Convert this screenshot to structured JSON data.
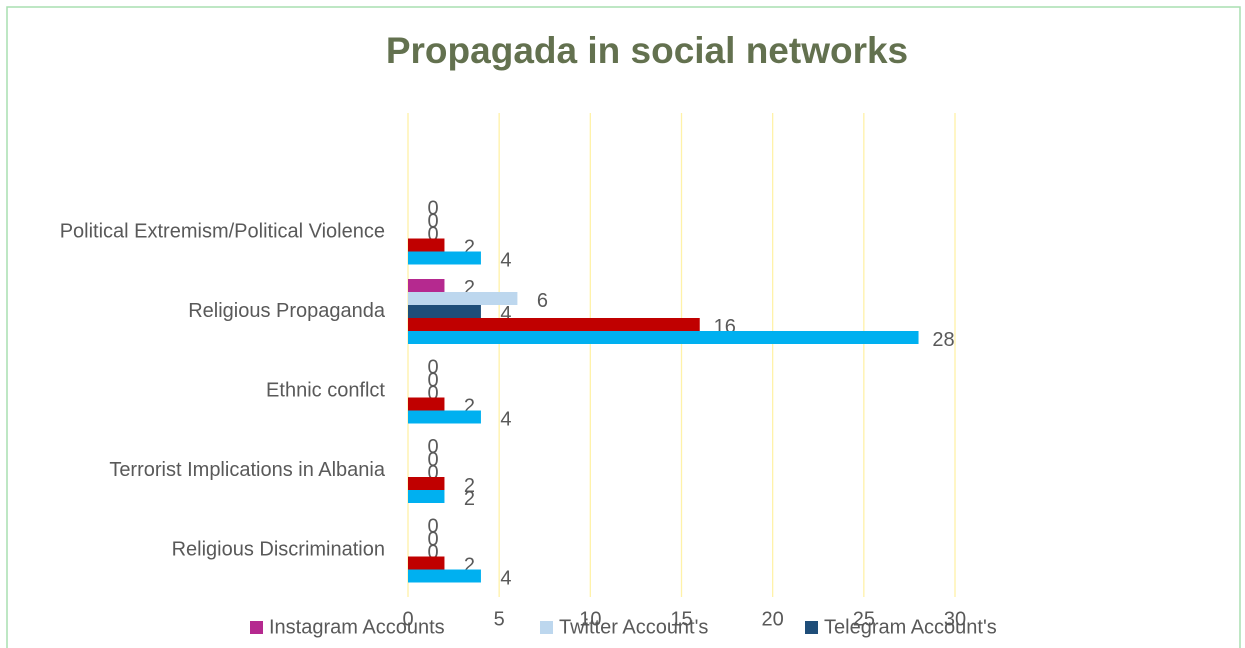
{
  "chart_data": {
    "type": "hbar",
    "title": "Propagada in social networks",
    "categories": [
      "Political Extremism/Political Violence",
      "Religious Propaganda",
      "Ethnic conflct",
      "Terrorist Implications in Albania",
      "Religious Discrimination"
    ],
    "series": [
      {
        "name": "Instagram Accounts",
        "color": "#b5298f",
        "values": [
          0,
          2,
          0,
          0,
          0
        ]
      },
      {
        "name": "Twitter Account's",
        "color": "#bdd7ee",
        "values": [
          0,
          6,
          0,
          0,
          0
        ]
      },
      {
        "name": "Telegram Account's",
        "color": "#1f4e79",
        "values": [
          0,
          4,
          0,
          0,
          0
        ]
      },
      {
        "color": "#c00000",
        "values": [
          2,
          16,
          2,
          2,
          2
        ]
      },
      {
        "color": "#00b0f0",
        "values": [
          4,
          28,
          4,
          2,
          4
        ]
      }
    ],
    "xlim": [
      0,
      30
    ],
    "xticks": [
      0,
      5,
      10,
      15,
      20,
      25,
      30
    ],
    "grid": true
  }
}
